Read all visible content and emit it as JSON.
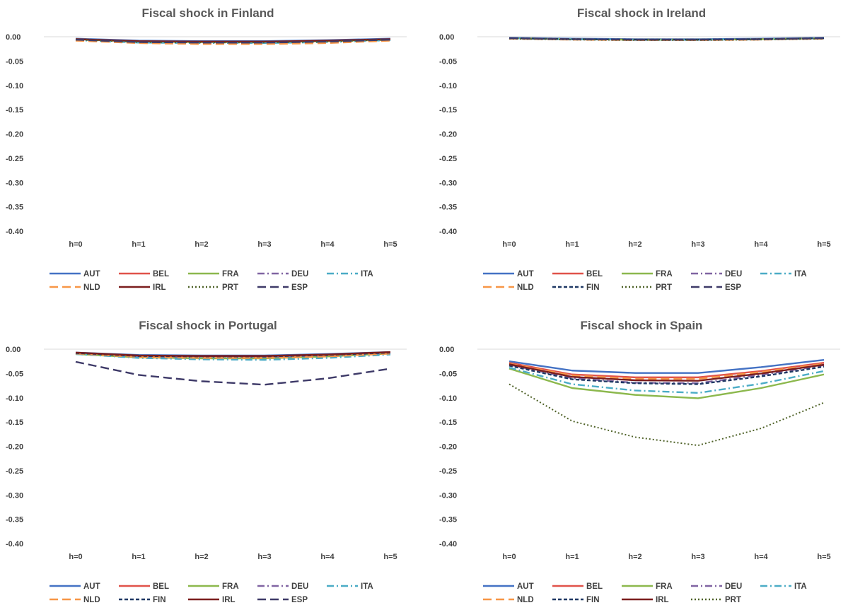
{
  "colors": {
    "AUT": "#4472C4",
    "BEL": "#E0524A",
    "FRA": "#8CB84D",
    "DEU": "#8064A2",
    "ITA": "#4BACC6",
    "NLD": "#F79646",
    "IRL": "#7B1E1E",
    "PRT": "#4F6228",
    "ESP": "#3E3A68",
    "FIN": "#1F3864"
  },
  "chart_data": [
    {
      "type": "line",
      "title": "Fiscal shock in Finland",
      "categories": [
        "h=0",
        "h=1",
        "h=2",
        "h=3",
        "h=4",
        "h=5"
      ],
      "ylim": [
        -0.4,
        0
      ],
      "yticks": [
        "0.00",
        "-0.05",
        "-0.10",
        "-0.15",
        "-0.20",
        "-0.25",
        "-0.30",
        "-0.35",
        "-0.40"
      ],
      "grid": false,
      "legend_position": "bottom",
      "series": [
        {
          "name": "AUT",
          "style": "solid",
          "values": [
            -0.004,
            -0.008,
            -0.009,
            -0.009,
            -0.007,
            -0.004
          ]
        },
        {
          "name": "BEL",
          "style": "solid",
          "values": [
            -0.005,
            -0.01,
            -0.011,
            -0.011,
            -0.009,
            -0.006
          ]
        },
        {
          "name": "FRA",
          "style": "solid",
          "values": [
            -0.005,
            -0.01,
            -0.011,
            -0.011,
            -0.009,
            -0.006
          ]
        },
        {
          "name": "DEU",
          "style": "dashdot",
          "values": [
            -0.006,
            -0.011,
            -0.012,
            -0.012,
            -0.01,
            -0.006
          ]
        },
        {
          "name": "ITA",
          "style": "dashdot",
          "values": [
            -0.007,
            -0.012,
            -0.013,
            -0.013,
            -0.011,
            -0.007
          ]
        },
        {
          "name": "NLD",
          "style": "longdash",
          "values": [
            -0.008,
            -0.013,
            -0.015,
            -0.015,
            -0.013,
            -0.008
          ]
        },
        {
          "name": "IRL",
          "style": "solid",
          "values": [
            -0.005,
            -0.009,
            -0.01,
            -0.01,
            -0.008,
            -0.005
          ]
        },
        {
          "name": "PRT",
          "style": "dotted",
          "values": [
            -0.006,
            -0.011,
            -0.012,
            -0.012,
            -0.01,
            -0.006
          ]
        },
        {
          "name": "ESP",
          "style": "longdash",
          "values": [
            -0.006,
            -0.011,
            -0.012,
            -0.012,
            -0.01,
            -0.006
          ]
        }
      ]
    },
    {
      "type": "line",
      "title": "Fiscal shock in Ireland",
      "categories": [
        "h=0",
        "h=1",
        "h=2",
        "h=3",
        "h=4",
        "h=5"
      ],
      "ylim": [
        -0.4,
        0
      ],
      "yticks": [
        "0.00",
        "-0.05",
        "-0.10",
        "-0.15",
        "-0.20",
        "-0.25",
        "-0.30",
        "-0.35",
        "-0.40"
      ],
      "grid": false,
      "legend_position": "bottom",
      "series": [
        {
          "name": "AUT",
          "style": "solid",
          "values": [
            -0.002,
            -0.004,
            -0.005,
            -0.005,
            -0.004,
            -0.002
          ]
        },
        {
          "name": "BEL",
          "style": "solid",
          "values": [
            -0.003,
            -0.005,
            -0.006,
            -0.006,
            -0.005,
            -0.003
          ]
        },
        {
          "name": "FRA",
          "style": "solid",
          "values": [
            -0.003,
            -0.005,
            -0.006,
            -0.006,
            -0.005,
            -0.003
          ]
        },
        {
          "name": "DEU",
          "style": "dashdot",
          "values": [
            -0.003,
            -0.005,
            -0.006,
            -0.006,
            -0.005,
            -0.003
          ]
        },
        {
          "name": "ITA",
          "style": "dashdot",
          "values": [
            -0.003,
            -0.005,
            -0.006,
            -0.006,
            -0.005,
            -0.003
          ]
        },
        {
          "name": "NLD",
          "style": "longdash",
          "values": [
            -0.004,
            -0.006,
            -0.007,
            -0.007,
            -0.006,
            -0.004
          ]
        },
        {
          "name": "FIN",
          "style": "dashed",
          "values": [
            -0.003,
            -0.005,
            -0.006,
            -0.006,
            -0.005,
            -0.003
          ]
        },
        {
          "name": "PRT",
          "style": "dotted",
          "values": [
            -0.004,
            -0.006,
            -0.007,
            -0.007,
            -0.006,
            -0.004
          ]
        },
        {
          "name": "ESP",
          "style": "longdash",
          "values": [
            -0.003,
            -0.005,
            -0.006,
            -0.006,
            -0.005,
            -0.003
          ]
        }
      ]
    },
    {
      "type": "line",
      "title": "Fiscal shock in Portugal",
      "categories": [
        "h=0",
        "h=1",
        "h=2",
        "h=3",
        "h=4",
        "h=5"
      ],
      "ylim": [
        -0.4,
        0
      ],
      "yticks": [
        "0.00",
        "-0.05",
        "-0.10",
        "-0.15",
        "-0.20",
        "-0.25",
        "-0.30",
        "-0.35",
        "-0.40"
      ],
      "grid": false,
      "legend_position": "bottom",
      "series": [
        {
          "name": "AUT",
          "style": "solid",
          "values": [
            -0.007,
            -0.012,
            -0.013,
            -0.013,
            -0.01,
            -0.006
          ]
        },
        {
          "name": "BEL",
          "style": "solid",
          "values": [
            -0.008,
            -0.014,
            -0.015,
            -0.015,
            -0.012,
            -0.007
          ]
        },
        {
          "name": "FRA",
          "style": "solid",
          "values": [
            -0.01,
            -0.017,
            -0.019,
            -0.019,
            -0.015,
            -0.009
          ]
        },
        {
          "name": "DEU",
          "style": "dashdot",
          "values": [
            -0.009,
            -0.015,
            -0.016,
            -0.016,
            -0.013,
            -0.008
          ]
        },
        {
          "name": "ITA",
          "style": "dashdot",
          "values": [
            -0.01,
            -0.018,
            -0.021,
            -0.022,
            -0.018,
            -0.011
          ]
        },
        {
          "name": "NLD",
          "style": "longdash",
          "values": [
            -0.009,
            -0.016,
            -0.018,
            -0.018,
            -0.015,
            -0.009
          ]
        },
        {
          "name": "FIN",
          "style": "dashed",
          "values": [
            -0.008,
            -0.014,
            -0.015,
            -0.015,
            -0.012,
            -0.007
          ]
        },
        {
          "name": "IRL",
          "style": "solid",
          "values": [
            -0.007,
            -0.013,
            -0.014,
            -0.014,
            -0.011,
            -0.006
          ]
        },
        {
          "name": "ESP",
          "style": "longdash",
          "values": [
            -0.026,
            -0.053,
            -0.066,
            -0.073,
            -0.06,
            -0.04
          ]
        }
      ]
    },
    {
      "type": "line",
      "title": "Fiscal shock in Spain",
      "categories": [
        "h=0",
        "h=1",
        "h=2",
        "h=3",
        "h=4",
        "h=5"
      ],
      "ylim": [
        -0.4,
        0
      ],
      "yticks": [
        "0.00",
        "-0.05",
        "-0.10",
        "-0.15",
        "-0.20",
        "-0.25",
        "-0.30",
        "-0.35",
        "-0.40"
      ],
      "grid": false,
      "legend_position": "bottom",
      "series": [
        {
          "name": "AUT",
          "style": "solid",
          "values": [
            -0.025,
            -0.044,
            -0.049,
            -0.049,
            -0.037,
            -0.022
          ]
        },
        {
          "name": "BEL",
          "style": "solid",
          "values": [
            -0.028,
            -0.052,
            -0.058,
            -0.058,
            -0.045,
            -0.028
          ]
        },
        {
          "name": "FRA",
          "style": "solid",
          "values": [
            -0.04,
            -0.08,
            -0.094,
            -0.101,
            -0.08,
            -0.052
          ]
        },
        {
          "name": "DEU",
          "style": "dashdot",
          "values": [
            -0.032,
            -0.06,
            -0.069,
            -0.07,
            -0.053,
            -0.033
          ]
        },
        {
          "name": "ITA",
          "style": "dashdot",
          "values": [
            -0.038,
            -0.072,
            -0.085,
            -0.09,
            -0.071,
            -0.045
          ]
        },
        {
          "name": "NLD",
          "style": "longdash",
          "values": [
            -0.03,
            -0.054,
            -0.061,
            -0.061,
            -0.047,
            -0.03
          ]
        },
        {
          "name": "FIN",
          "style": "dashed",
          "values": [
            -0.034,
            -0.062,
            -0.07,
            -0.072,
            -0.056,
            -0.036
          ]
        },
        {
          "name": "IRL",
          "style": "solid",
          "values": [
            -0.031,
            -0.057,
            -0.064,
            -0.065,
            -0.05,
            -0.032
          ]
        },
        {
          "name": "PRT",
          "style": "dotted",
          "values": [
            -0.072,
            -0.148,
            -0.181,
            -0.198,
            -0.163,
            -0.11
          ]
        }
      ]
    }
  ]
}
